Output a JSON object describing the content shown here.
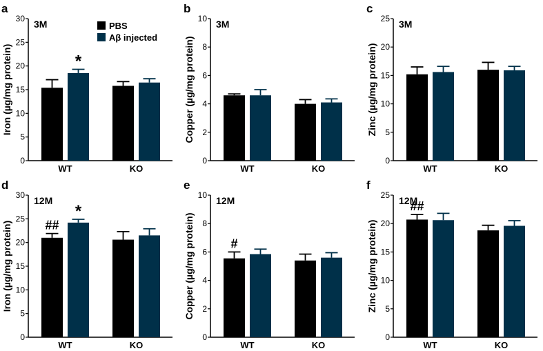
{
  "legend": {
    "position": "top-right of panel a",
    "items": [
      {
        "name": "PBS",
        "color": "#000000"
      },
      {
        "name": "Aβ injected",
        "color": "#003049"
      }
    ]
  },
  "chart_data": [
    {
      "panel": "a",
      "type": "bar",
      "tag": "3M",
      "ylabel": "Iron (µg/mg protein)",
      "ylim": [
        0,
        30
      ],
      "yticks": [
        0,
        5,
        10,
        15,
        20,
        25,
        30
      ],
      "categories": [
        "WT",
        "KO"
      ],
      "series": [
        {
          "name": "PBS",
          "values": [
            15.4,
            15.8
          ],
          "errors": [
            1.7,
            0.9
          ]
        },
        {
          "name": "Aβ injected",
          "values": [
            18.5,
            16.5
          ],
          "errors": [
            0.8,
            0.8
          ]
        }
      ],
      "annotations": [
        {
          "text": "*",
          "category": "WT",
          "series": "Aβ injected"
        }
      ]
    },
    {
      "panel": "b",
      "type": "bar",
      "tag": "3M",
      "ylabel": "Copper (µg/mg protein)",
      "ylim": [
        0,
        10
      ],
      "yticks": [
        0,
        2,
        4,
        6,
        8,
        10
      ],
      "categories": [
        "WT",
        "KO"
      ],
      "series": [
        {
          "name": "PBS",
          "values": [
            4.6,
            4.0
          ],
          "errors": [
            0.1,
            0.3
          ]
        },
        {
          "name": "Aβ injected",
          "values": [
            4.6,
            4.1
          ],
          "errors": [
            0.4,
            0.25
          ]
        }
      ],
      "annotations": []
    },
    {
      "panel": "c",
      "type": "bar",
      "tag": "3M",
      "ylabel": "Zinc (µg/mg protein)",
      "ylim": [
        0,
        25
      ],
      "yticks": [
        0,
        5,
        10,
        15,
        20,
        25
      ],
      "categories": [
        "WT",
        "KO"
      ],
      "series": [
        {
          "name": "PBS",
          "values": [
            15.2,
            16.0
          ],
          "errors": [
            1.3,
            1.3
          ]
        },
        {
          "name": "Aβ injected",
          "values": [
            15.6,
            15.9
          ],
          "errors": [
            1.0,
            0.7
          ]
        }
      ],
      "annotations": []
    },
    {
      "panel": "d",
      "type": "bar",
      "tag": "12M",
      "ylabel": "Iron (µg/mg protein)",
      "ylim": [
        0,
        30
      ],
      "yticks": [
        0,
        5,
        10,
        15,
        20,
        25,
        30
      ],
      "categories": [
        "WT",
        "KO"
      ],
      "series": [
        {
          "name": "PBS",
          "values": [
            21.0,
            20.6
          ],
          "errors": [
            0.9,
            1.7
          ]
        },
        {
          "name": "Aβ injected",
          "values": [
            24.2,
            21.5
          ],
          "errors": [
            0.7,
            1.4
          ]
        }
      ],
      "annotations": [
        {
          "text": "##",
          "category": "WT",
          "series": "PBS"
        },
        {
          "text": "*",
          "category": "WT",
          "series": "Aβ injected"
        }
      ]
    },
    {
      "panel": "e",
      "type": "bar",
      "tag": "12M",
      "ylabel": "Copper (µg/mg protein)",
      "ylim": [
        0,
        10
      ],
      "yticks": [
        0,
        2,
        4,
        6,
        8,
        10
      ],
      "categories": [
        "WT",
        "KO"
      ],
      "series": [
        {
          "name": "PBS",
          "values": [
            5.55,
            5.4
          ],
          "errors": [
            0.45,
            0.45
          ]
        },
        {
          "name": "Aβ injected",
          "values": [
            5.85,
            5.6
          ],
          "errors": [
            0.35,
            0.35
          ]
        }
      ],
      "annotations": [
        {
          "text": "#",
          "category": "WT",
          "series": "PBS"
        }
      ]
    },
    {
      "panel": "f",
      "type": "bar",
      "tag": "12M",
      "ylabel": "Zinc (µg/mg protein)",
      "ylim": [
        0,
        25
      ],
      "yticks": [
        0,
        5,
        10,
        15,
        20,
        25
      ],
      "categories": [
        "WT",
        "KO"
      ],
      "series": [
        {
          "name": "PBS",
          "values": [
            20.7,
            18.8
          ],
          "errors": [
            0.9,
            0.9
          ]
        },
        {
          "name": "Aβ injected",
          "values": [
            20.6,
            19.6
          ],
          "errors": [
            1.2,
            0.9
          ]
        }
      ],
      "annotations": [
        {
          "text": "##",
          "category": "WT",
          "series": "PBS"
        }
      ]
    }
  ]
}
